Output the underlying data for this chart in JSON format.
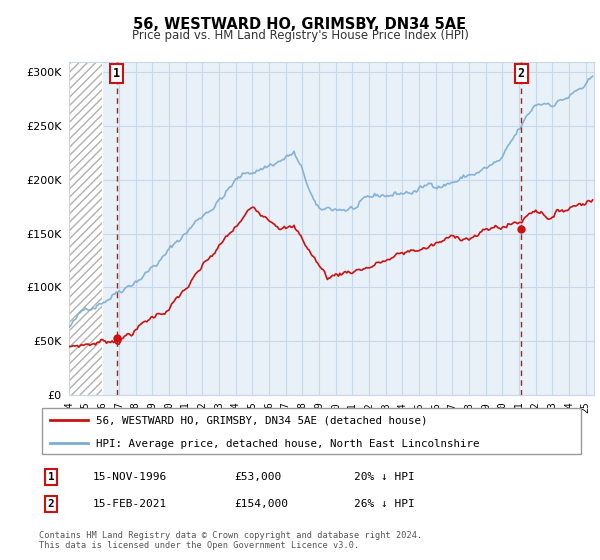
{
  "title": "56, WESTWARD HO, GRIMSBY, DN34 5AE",
  "subtitle": "Price paid vs. HM Land Registry's House Price Index (HPI)",
  "hpi_label": "HPI: Average price, detached house, North East Lincolnshire",
  "price_label": "56, WESTWARD HO, GRIMSBY, DN34 5AE (detached house)",
  "annotation1_label": "1",
  "annotation1_date": "15-NOV-1996",
  "annotation1_price": "£53,000",
  "annotation1_hpi": "20% ↓ HPI",
  "annotation2_label": "2",
  "annotation2_date": "15-FEB-2021",
  "annotation2_price": "£154,000",
  "annotation2_hpi": "26% ↓ HPI",
  "footer": "Contains HM Land Registry data © Crown copyright and database right 2024.\nThis data is licensed under the Open Government Licence v3.0.",
  "sale1_year": 1996.875,
  "sale1_value": 53000,
  "sale2_year": 2021.125,
  "sale2_value": 154000,
  "ylim": [
    0,
    310000
  ],
  "xlim_start": 1994.0,
  "xlim_end": 2025.5,
  "hpi_color": "#7aadd4",
  "price_color": "#cc1111",
  "dot_color": "#cc1111",
  "grid_color": "#c8d8e8",
  "annotation_box_color": "#cc1111",
  "plot_bg_color": "#e8f0f8",
  "hatch_color": "#b0b0b0"
}
